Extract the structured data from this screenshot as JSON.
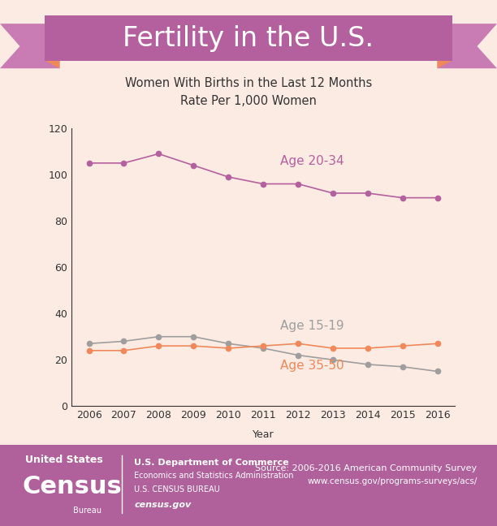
{
  "chart_data": {
    "type": "line",
    "title": "Fertility in the U.S.",
    "subtitle": "Women With Births in the Last 12 Months\nRate Per 1,000 Women",
    "x_label": "Year",
    "x": [
      2006,
      2007,
      2008,
      2009,
      2010,
      2011,
      2012,
      2013,
      2014,
      2015,
      2016
    ],
    "series": [
      {
        "name": "Age 20-34",
        "color": "#b5609e",
        "marker": "o",
        "line_style": "solid",
        "values": [
          105,
          105,
          109,
          104,
          99,
          96,
          96,
          92,
          92,
          90,
          90
        ]
      },
      {
        "name": "Age 15-19",
        "color": "#9e9e9e",
        "marker": "o",
        "line_style": "solid",
        "values": [
          27,
          28,
          30,
          30,
          27,
          25,
          22,
          20,
          18,
          17,
          15
        ]
      },
      {
        "name": "Age 35-50",
        "color": "#f0885a",
        "marker": "o",
        "line_style": "solid",
        "values": [
          24,
          24,
          26,
          26,
          25,
          26,
          27,
          25,
          25,
          26,
          27
        ]
      }
    ],
    "xlim": [
      2005.5,
      2016.5
    ],
    "xticks": [
      2006,
      2007,
      2008,
      2009,
      2010,
      2011,
      2012,
      2013,
      2014,
      2015,
      2016
    ],
    "ylim": [
      0,
      120
    ],
    "yticks": [
      0,
      20,
      40,
      60,
      80,
      100,
      120
    ],
    "grid": false,
    "annotations": [
      "United States",
      "Census",
      "Bureau",
      "U.S. Department of Commerce",
      "Economics and Statistics Administration",
      "U.S. CENSUS BUREAU",
      "census.gov",
      "Source: 2006-2016 American Community Survey",
      "www.census.gov/programs-surveys/acs/"
    ]
  }
}
